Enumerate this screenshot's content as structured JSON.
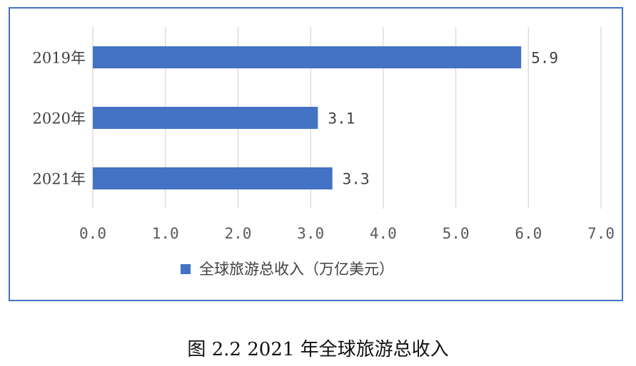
{
  "caption": "图 2.2   2021 年全球旅游总收入",
  "chart_data": {
    "type": "bar",
    "orientation": "horizontal",
    "categories": [
      "2019年",
      "2020年",
      "2021年"
    ],
    "series": [
      {
        "name": "全球旅游总收入（万亿美元）",
        "values": [
          5.9,
          3.1,
          3.3
        ],
        "color": "#4472c4"
      }
    ],
    "data_labels": [
      "5.9",
      "3.1",
      "3.3"
    ],
    "xlim": [
      0,
      7
    ],
    "xticks": [
      "0.0",
      "1.0",
      "2.0",
      "3.0",
      "4.0",
      "5.0",
      "6.0",
      "7.0"
    ],
    "grid": "vertical",
    "legend": "bottom",
    "frame_color": "#4472c4",
    "grid_color": "#d9d9d9"
  }
}
